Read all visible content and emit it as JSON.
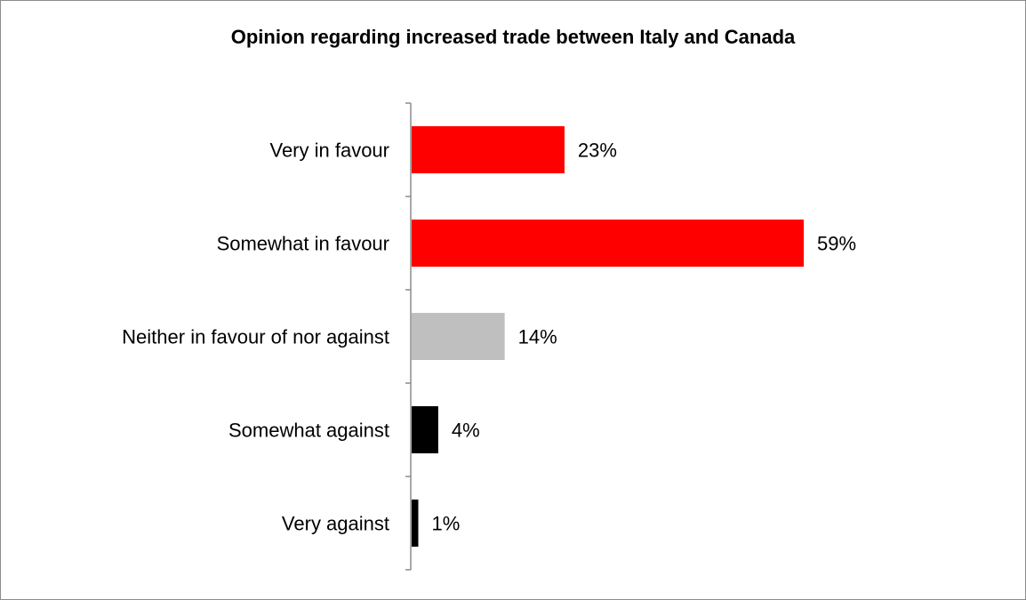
{
  "chart_data": {
    "type": "bar",
    "orientation": "horizontal",
    "title": "Opinion regarding increased trade between Italy and Canada",
    "categories": [
      "Very in favour",
      "Somewhat in favour",
      "Neither in favour of nor against",
      "Somewhat against",
      "Very against"
    ],
    "values": [
      23,
      59,
      14,
      4,
      1
    ],
    "value_labels": [
      "23%",
      "59%",
      "14%",
      "4%",
      "1%"
    ],
    "bar_colors": [
      "#ff0000",
      "#ff0000",
      "#bfbfbf",
      "#000000",
      "#000000"
    ],
    "xlabel": "",
    "ylabel": "",
    "unit": "%",
    "xlim": [
      0,
      60
    ],
    "grid": false,
    "legend": "none"
  }
}
